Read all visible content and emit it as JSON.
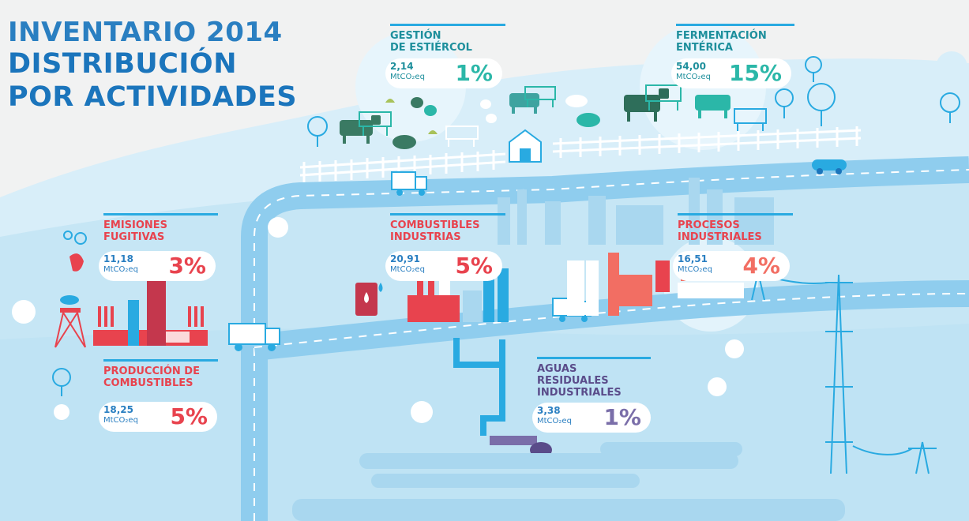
{
  "title": {
    "line1": "INVENTARIO 2014",
    "line2": "DISTRIBUCIÓN",
    "line3": "POR ACTIVIDADES"
  },
  "activities": {
    "gestion_estiercol": {
      "line1": "GESTIÓN",
      "line2": "DE ESTIÉRCOL",
      "value": "2,14",
      "unit": "MtCO₂eq",
      "percent": "1%"
    },
    "fermentacion_enterica": {
      "line1": "FERMENTACIÓN",
      "line2": "ENTÉRICA",
      "value": "54,00",
      "unit": "MtCO₂eq",
      "percent": "15%"
    },
    "emisiones_fugitivas": {
      "line1": "EMISIONES",
      "line2": "FUGITIVAS",
      "value": "11,18",
      "unit": "MtCO₂eq",
      "percent": "3%"
    },
    "combustibles_industrias": {
      "line1": "COMBUSTIBLES",
      "line2": "INDUSTRIAS",
      "value": "20,91",
      "unit": "MtCO₂eq",
      "percent": "5%"
    },
    "procesos_industriales": {
      "line1": "PROCESOS",
      "line2": "INDUSTRIALES",
      "value": "16,51",
      "unit": "MtCO₂eq",
      "percent": "4%"
    },
    "produccion_combustibles": {
      "line1": "PRODUCCIÓN DE",
      "line2": "COMBUSTIBLES",
      "value": "18,25",
      "unit": "MtCO₂eq",
      "percent": "5%"
    },
    "aguas_residuales": {
      "line1": "AGUAS",
      "line2": "RESIDUALES",
      "line3": "INDUSTRIALES",
      "value": "3,38",
      "unit": "MtCO₂eq",
      "percent": "1%"
    }
  },
  "colors": {
    "title_blue": "#1b75bc",
    "sky": "#d7edf8",
    "hill_light": "#c6e6f5",
    "hill_mid": "#b3ddf2",
    "road": "#9fd3ef",
    "teal": "#2bb7a8",
    "red": "#e8434e",
    "salmon": "#f26e63",
    "purple": "#7a6ea9",
    "accent": "#29aae1"
  }
}
